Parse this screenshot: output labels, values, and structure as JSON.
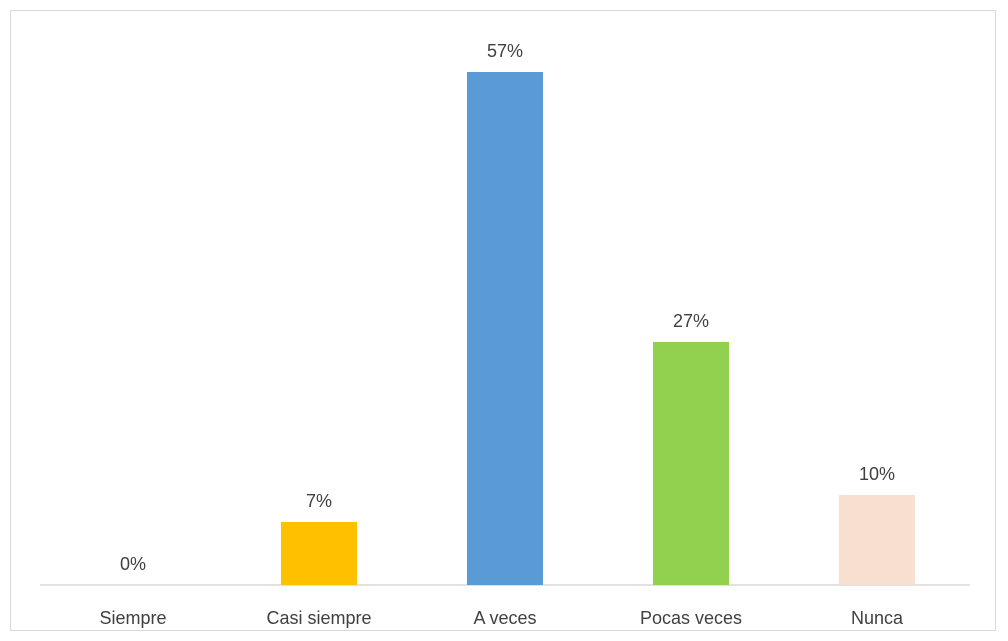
{
  "chart_data": {
    "type": "bar",
    "categories": [
      "Siempre",
      "Casi siempre",
      "A veces",
      "Pocas veces",
      "Nunca"
    ],
    "values": [
      0,
      7,
      57,
      27,
      10
    ],
    "data_labels": [
      "0%",
      "7%",
      "57%",
      "27%",
      "10%"
    ],
    "colors": [
      "#5b9bd5",
      "#ffc000",
      "#5b9bd5",
      "#92d050",
      "#f8e0d0"
    ],
    "ylim": [
      0,
      60
    ],
    "grid": false,
    "legend": "none",
    "axis_color": "#d9d9d9"
  }
}
